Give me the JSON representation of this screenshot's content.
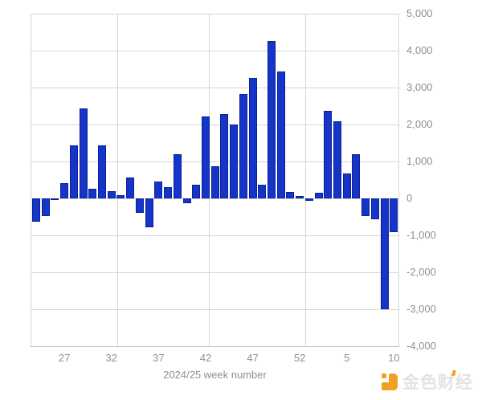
{
  "chart_data": {
    "type": "bar",
    "title": "",
    "xlabel": "2024/25 week number",
    "ylabel": "",
    "categories": [
      "24",
      "25",
      "26",
      "27",
      "28",
      "29",
      "30",
      "31",
      "32",
      "33",
      "34",
      "35",
      "36",
      "37",
      "38",
      "39",
      "40",
      "41",
      "42",
      "43",
      "44",
      "45",
      "46",
      "47",
      "48",
      "49",
      "50",
      "51",
      "52",
      "1",
      "2",
      "3",
      "4",
      "5",
      "6",
      "7",
      "8",
      "9",
      "10"
    ],
    "values": [
      -620,
      -480,
      -40,
      420,
      1430,
      2430,
      260,
      1430,
      200,
      80,
      560,
      -390,
      -780,
      460,
      300,
      1200,
      -120,
      380,
      2220,
      870,
      2280,
      2000,
      2830,
      3270,
      370,
      4260,
      3440,
      180,
      70,
      -70,
      150,
      2370,
      2090,
      680,
      1200,
      -480,
      -570,
      -3000,
      -910
    ],
    "x_tick_labels": [
      "27",
      "32",
      "37",
      "42",
      "47",
      "52",
      "5",
      "10"
    ],
    "y_tick_labels": [
      "5,000",
      "4,000",
      "3,000",
      "2,000",
      "1,000",
      "0",
      "-1,000",
      "-2,000",
      "-3,000",
      "-4,000"
    ],
    "y_tick_values": [
      5000,
      4000,
      3000,
      2000,
      1000,
      0,
      -1000,
      -2000,
      -3000,
      -4000
    ],
    "ylim": [
      -4000,
      5000
    ],
    "grid": true,
    "legend": "none",
    "bar_color": "#1535C8",
    "bar_border_color": "#0B1F96",
    "gridline_color": "#D5D5D5",
    "axis_line_color": "#C2C2C2",
    "axis_label_color": "#8F8F8F"
  },
  "watermark": {
    "brand_text": "金色财经",
    "logo_color": "#F0A022",
    "text_color": "#E3E3E3"
  }
}
